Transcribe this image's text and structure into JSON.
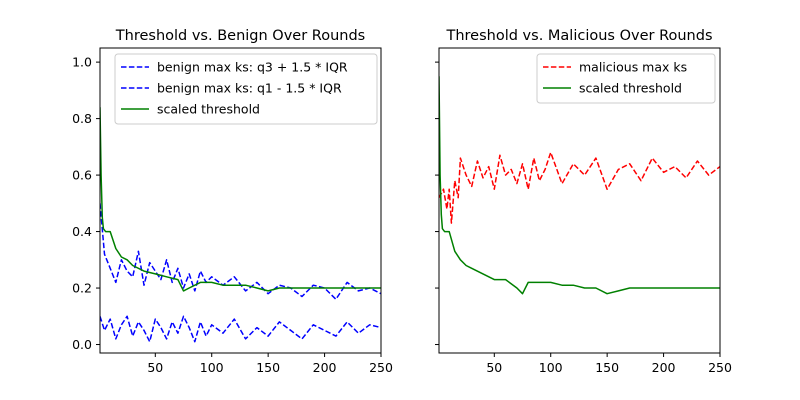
{
  "chart_data": [
    {
      "type": "line",
      "title": "Threshold vs. Benign Over Rounds",
      "xlim": [
        1,
        250
      ],
      "ylim": [
        -0.03,
        1.05
      ],
      "xticks": [
        50,
        100,
        150,
        200,
        250
      ],
      "yticks": [
        0.0,
        0.2,
        0.4,
        0.6,
        0.8,
        1.0
      ],
      "ytick_labels": [
        "0.0",
        "0.2",
        "0.4",
        "0.6",
        "0.8",
        "1.0"
      ],
      "show_yticklabels": true,
      "grid": false,
      "legend_position": "top-right",
      "series": [
        {
          "name": "benign max ks: q3 + 1.5 * IQR",
          "color": "#0000ff",
          "dash": "dashed",
          "x": [
            1,
            5,
            10,
            15,
            20,
            25,
            30,
            35,
            40,
            45,
            50,
            55,
            60,
            65,
            70,
            75,
            80,
            85,
            90,
            95,
            100,
            110,
            120,
            130,
            140,
            150,
            160,
            170,
            180,
            190,
            200,
            210,
            220,
            230,
            240,
            250
          ],
          "y": [
            0.5,
            0.32,
            0.27,
            0.22,
            0.3,
            0.26,
            0.24,
            0.33,
            0.21,
            0.29,
            0.26,
            0.23,
            0.3,
            0.22,
            0.27,
            0.2,
            0.25,
            0.19,
            0.26,
            0.22,
            0.24,
            0.21,
            0.24,
            0.19,
            0.22,
            0.18,
            0.21,
            0.2,
            0.17,
            0.21,
            0.2,
            0.16,
            0.22,
            0.19,
            0.2,
            0.18
          ]
        },
        {
          "name": "benign max ks: q1 - 1.5 * IQR",
          "color": "#0000ff",
          "dash": "dashed",
          "x": [
            1,
            5,
            10,
            15,
            20,
            25,
            30,
            35,
            40,
            45,
            50,
            55,
            60,
            65,
            70,
            75,
            80,
            85,
            90,
            95,
            100,
            110,
            120,
            130,
            140,
            150,
            160,
            170,
            180,
            190,
            200,
            210,
            220,
            230,
            240,
            250
          ],
          "y": [
            0.1,
            0.05,
            0.09,
            0.02,
            0.07,
            0.1,
            0.03,
            0.08,
            0.05,
            0.01,
            0.09,
            0.06,
            0.02,
            0.08,
            0.04,
            0.1,
            0.06,
            0.01,
            0.08,
            0.03,
            0.07,
            0.04,
            0.09,
            0.02,
            0.06,
            0.03,
            0.08,
            0.05,
            0.02,
            0.07,
            0.05,
            0.03,
            0.08,
            0.04,
            0.07,
            0.06
          ]
        },
        {
          "name": "scaled threshold",
          "color": "#008000",
          "dash": "solid",
          "x": [
            1,
            2,
            3,
            4,
            6,
            10,
            15,
            20,
            25,
            30,
            40,
            50,
            60,
            70,
            75,
            80,
            90,
            100,
            110,
            120,
            130,
            140,
            150,
            160,
            170,
            180,
            200,
            220,
            250
          ],
          "y": [
            0.84,
            0.6,
            0.45,
            0.41,
            0.4,
            0.4,
            0.34,
            0.31,
            0.3,
            0.28,
            0.26,
            0.25,
            0.24,
            0.23,
            0.19,
            0.2,
            0.22,
            0.22,
            0.21,
            0.21,
            0.21,
            0.2,
            0.19,
            0.2,
            0.2,
            0.2,
            0.2,
            0.2,
            0.2
          ]
        }
      ]
    },
    {
      "type": "line",
      "title": "Threshold vs. Malicious Over Rounds",
      "xlim": [
        1,
        250
      ],
      "ylim": [
        -0.03,
        1.05
      ],
      "xticks": [
        50,
        100,
        150,
        200,
        250
      ],
      "yticks": [
        0.0,
        0.2,
        0.4,
        0.6,
        0.8,
        1.0
      ],
      "ytick_labels": [
        "",
        "",
        "",
        "",
        "",
        ""
      ],
      "show_yticklabels": false,
      "grid": false,
      "legend_position": "top-right",
      "series": [
        {
          "name": "malicious max ks",
          "color": "#ff0000",
          "dash": "dashed",
          "x": [
            1,
            5,
            8,
            10,
            12,
            15,
            18,
            20,
            25,
            30,
            35,
            40,
            45,
            50,
            55,
            60,
            65,
            70,
            75,
            80,
            85,
            90,
            95,
            100,
            110,
            120,
            130,
            140,
            150,
            160,
            170,
            180,
            190,
            200,
            210,
            220,
            230,
            240,
            250
          ],
          "y": [
            0.52,
            0.55,
            0.48,
            0.55,
            0.43,
            0.58,
            0.52,
            0.66,
            0.6,
            0.56,
            0.65,
            0.59,
            0.63,
            0.55,
            0.67,
            0.6,
            0.62,
            0.57,
            0.64,
            0.55,
            0.66,
            0.58,
            0.62,
            0.68,
            0.57,
            0.64,
            0.6,
            0.66,
            0.55,
            0.62,
            0.64,
            0.58,
            0.66,
            0.61,
            0.63,
            0.59,
            0.65,
            0.6,
            0.63
          ]
        },
        {
          "name": "scaled threshold",
          "color": "#008000",
          "dash": "solid",
          "x": [
            1,
            2,
            3,
            4,
            6,
            10,
            15,
            20,
            25,
            30,
            40,
            50,
            60,
            70,
            75,
            80,
            90,
            100,
            110,
            120,
            130,
            140,
            150,
            160,
            170,
            180,
            200,
            220,
            250
          ],
          "y": [
            0.95,
            0.6,
            0.46,
            0.41,
            0.4,
            0.4,
            0.33,
            0.3,
            0.28,
            0.27,
            0.25,
            0.23,
            0.23,
            0.2,
            0.18,
            0.22,
            0.22,
            0.22,
            0.21,
            0.21,
            0.2,
            0.2,
            0.18,
            0.19,
            0.2,
            0.2,
            0.2,
            0.2,
            0.2
          ]
        }
      ]
    }
  ]
}
